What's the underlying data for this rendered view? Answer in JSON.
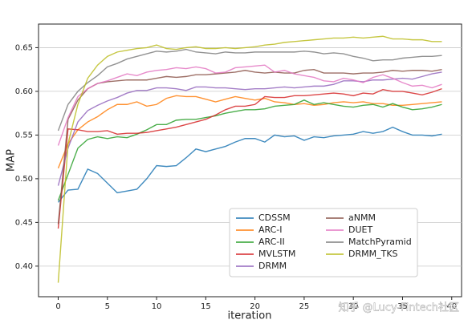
{
  "chart_data": {
    "type": "line",
    "xlabel": "iteration",
    "ylabel": "MAP",
    "x": [
      0,
      1,
      2,
      3,
      4,
      5,
      6,
      7,
      8,
      9,
      10,
      11,
      12,
      13,
      14,
      15,
      16,
      17,
      18,
      19,
      20,
      21,
      22,
      23,
      24,
      25,
      26,
      27,
      28,
      29,
      30,
      31,
      32,
      33,
      34,
      35,
      36,
      37,
      38,
      39
    ],
    "xlim": [
      -2,
      41
    ],
    "ylim": [
      0.365,
      0.677
    ],
    "xticks": [
      0,
      5,
      10,
      15,
      20,
      25,
      30,
      35,
      40
    ],
    "yticks": [
      {
        "value": 0.4,
        "label": "0.40"
      },
      0.45,
      {
        "value": 0.5,
        "label": "0.50"
      },
      0.55,
      {
        "value": 0.6,
        "label": "0.60"
      },
      0.65
    ],
    "grid": true,
    "legend": "lower right",
    "series": [
      {
        "name": "CDSSM",
        "color": "#1f77b4",
        "values": [
          0.473,
          0.487,
          0.488,
          0.511,
          0.506,
          0.495,
          0.484,
          0.486,
          0.488,
          0.5,
          0.515,
          0.514,
          0.515,
          0.524,
          0.534,
          0.531,
          0.534,
          0.537,
          0.542,
          0.546,
          0.546,
          0.542,
          0.55,
          0.548,
          0.549,
          0.544,
          0.548,
          0.547,
          0.549,
          0.55,
          0.551,
          0.554,
          0.552,
          0.554,
          0.559,
          0.554,
          0.55,
          0.55,
          0.549,
          0.551
        ]
      },
      {
        "name": "ARC-I",
        "color": "#ff7f0e",
        "values": [
          0.512,
          0.54,
          0.556,
          0.565,
          0.571,
          0.579,
          0.585,
          0.585,
          0.588,
          0.583,
          0.585,
          0.592,
          0.595,
          0.594,
          0.594,
          0.591,
          0.588,
          0.591,
          0.594,
          0.592,
          0.59,
          0.592,
          0.588,
          0.587,
          0.585,
          0.586,
          0.584,
          0.585,
          0.587,
          0.588,
          0.587,
          0.588,
          0.586,
          0.586,
          0.584,
          0.584,
          0.585,
          0.586,
          0.587,
          0.588
        ]
      },
      {
        "name": "ARC-II",
        "color": "#2ca02c",
        "values": [
          0.475,
          0.505,
          0.535,
          0.545,
          0.548,
          0.546,
          0.548,
          0.547,
          0.551,
          0.556,
          0.562,
          0.562,
          0.567,
          0.568,
          0.568,
          0.57,
          0.572,
          0.575,
          0.577,
          0.579,
          0.579,
          0.58,
          0.583,
          0.584,
          0.585,
          0.59,
          0.585,
          0.587,
          0.585,
          0.583,
          0.582,
          0.584,
          0.585,
          0.582,
          0.586,
          0.582,
          0.579,
          0.58,
          0.582,
          0.585
        ]
      },
      {
        "name": "MVLSTM",
        "color": "#d62728",
        "values": [
          0.443,
          0.557,
          0.556,
          0.554,
          0.554,
          0.555,
          0.551,
          0.552,
          0.552,
          0.553,
          0.555,
          0.557,
          0.559,
          0.562,
          0.565,
          0.568,
          0.573,
          0.579,
          0.583,
          0.583,
          0.585,
          0.594,
          0.593,
          0.593,
          0.595,
          0.595,
          0.596,
          0.597,
          0.598,
          0.597,
          0.595,
          0.598,
          0.597,
          0.602,
          0.6,
          0.6,
          0.598,
          0.596,
          0.599,
          0.603
        ]
      },
      {
        "name": "DRMM",
        "color": "#9467bd",
        "values": [
          0.492,
          0.535,
          0.565,
          0.578,
          0.584,
          0.589,
          0.593,
          0.598,
          0.601,
          0.601,
          0.604,
          0.604,
          0.603,
          0.601,
          0.605,
          0.605,
          0.604,
          0.604,
          0.603,
          0.602,
          0.603,
          0.603,
          0.604,
          0.605,
          0.604,
          0.605,
          0.606,
          0.606,
          0.608,
          0.612,
          0.612,
          0.611,
          0.613,
          0.613,
          0.614,
          0.615,
          0.614,
          0.617,
          0.62,
          0.622
        ]
      },
      {
        "name": "aNMM",
        "color": "#8c564b",
        "values": [
          0.448,
          0.568,
          0.59,
          0.603,
          0.609,
          0.611,
          0.612,
          0.613,
          0.613,
          0.613,
          0.615,
          0.617,
          0.616,
          0.617,
          0.619,
          0.619,
          0.62,
          0.621,
          0.622,
          0.624,
          0.622,
          0.621,
          0.622,
          0.621,
          0.621,
          0.624,
          0.625,
          0.621,
          0.621,
          0.621,
          0.62,
          0.621,
          0.621,
          0.622,
          0.624,
          0.623,
          0.624,
          0.624,
          0.623,
          0.625
        ]
      },
      {
        "name": "DUET",
        "color": "#e377c2",
        "values": [
          0.538,
          0.57,
          0.594,
          0.603,
          0.609,
          0.612,
          0.616,
          0.62,
          0.618,
          0.622,
          0.624,
          0.625,
          0.627,
          0.626,
          0.628,
          0.626,
          0.621,
          0.622,
          0.627,
          0.628,
          0.629,
          0.63,
          0.622,
          0.624,
          0.62,
          0.618,
          0.616,
          0.612,
          0.611,
          0.615,
          0.613,
          0.61,
          0.616,
          0.619,
          0.615,
          0.61,
          0.606,
          0.607,
          0.604,
          0.608
        ]
      },
      {
        "name": "MatchPyramid",
        "color": "#7f7f7f",
        "values": [
          0.555,
          0.585,
          0.6,
          0.61,
          0.618,
          0.628,
          0.632,
          0.637,
          0.64,
          0.643,
          0.646,
          0.645,
          0.646,
          0.648,
          0.645,
          0.644,
          0.643,
          0.645,
          0.644,
          0.644,
          0.645,
          0.645,
          0.645,
          0.645,
          0.645,
          0.646,
          0.645,
          0.643,
          0.644,
          0.643,
          0.64,
          0.638,
          0.635,
          0.636,
          0.636,
          0.638,
          0.639,
          0.64,
          0.64,
          0.641
        ]
      },
      {
        "name": "DRMM_TKS",
        "color": "#bcbd22",
        "values": [
          0.381,
          0.54,
          0.585,
          0.615,
          0.63,
          0.64,
          0.645,
          0.647,
          0.649,
          0.65,
          0.653,
          0.649,
          0.648,
          0.65,
          0.651,
          0.649,
          0.649,
          0.65,
          0.649,
          0.65,
          0.651,
          0.653,
          0.654,
          0.656,
          0.657,
          0.658,
          0.659,
          0.66,
          0.661,
          0.661,
          0.662,
          0.661,
          0.662,
          0.663,
          0.66,
          0.66,
          0.659,
          0.659,
          0.657,
          0.657
        ]
      }
    ],
    "watermark": "知乎 @Lucy-Fintech社区"
  }
}
